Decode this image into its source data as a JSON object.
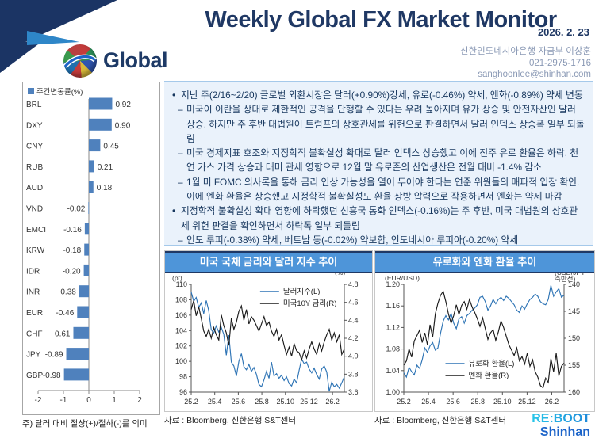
{
  "header": {
    "title": "Weekly Global FX Market Monitor",
    "date": "2026. 2. 23",
    "section_label": "Global",
    "contact_line1": "신한인도네시아은행 자금부 이상훈",
    "contact_line2": "021-2975-1716",
    "contact_line3": "sanghoonlee@shinhan.com"
  },
  "colors": {
    "navy": "#1F3864",
    "header_bar_blue": "#4E95D9",
    "bar_blue": "#4F81BD",
    "line_blue": "#2E74B5",
    "line_black": "#1a1a1a",
    "panel_bg": "#EAF2FB"
  },
  "summary": {
    "items": [
      {
        "marker": "•",
        "level": 0,
        "text": "지난 주(2/16~2/20) 글로벌 외환시장은 달러(+0.90%)강세, 유로(-0.46%) 약세, 엔화(-0.89%) 약세 변동"
      },
      {
        "marker": "–",
        "level": 1,
        "text": "미국이 이란을 상대로 제한적인 공격을 단행할 수 있다는 우려 높아지며 유가 상승 및 안전자산인 달러 상승. 하지만 주 후반 대법원이 트럼프의 상호관세를 위헌으로 판결하면서 달러 인덱스 상승폭 일부 되돌림"
      },
      {
        "marker": "–",
        "level": 1,
        "text": "미국 경제지표 호조와 지정학적 불확실성 확대로 달러 인덱스 상승했고 이에 전주 유로 환율은 하락. 천연 가스 가격 상승과 대미 관세 영향으로 12월 말 유로존의 산업생산은 전월 대비 -1.4% 감소"
      },
      {
        "marker": "–",
        "level": 1,
        "text": "1월 미 FOMC 의사록을 통해 금리 인상 가능성을 열어 두어야 한다는 연준 위원들의 매파적 입장 확인. 이에 엔화 환율은 상승했고 지정학적 불확실성도 환율 상방 압력으로 작용하면서 엔화는 약세 마감"
      },
      {
        "marker": "•",
        "level": 0,
        "text": "지정학적 불확실성 확대 영향에 하락했던 신흥국 통화 인덱스(-0.16%)는 주 후반, 미국 대법원의 상호관세 위헌 판결을 확인하면서 하락폭 일부 되돌림"
      },
      {
        "marker": "–",
        "level": 1,
        "text": "인도 루피(-0.38%) 약세, 베트남 동(-0.02%) 약보합, 인도네시아 루피아(-0.20%) 약세"
      }
    ]
  },
  "chart_data": [
    {
      "type": "bar",
      "orientation": "horizontal",
      "title": "주간변동률(%)",
      "categories": [
        "BRL",
        "DXY",
        "CNY",
        "RUB",
        "AUD",
        "VND",
        "EMCI",
        "KRW",
        "IDR",
        "INR",
        "EUR",
        "CHF",
        "JPY",
        "GBP"
      ],
      "values": [
        0.92,
        0.9,
        0.45,
        0.21,
        0.18,
        -0.02,
        -0.16,
        -0.18,
        -0.2,
        -0.38,
        -0.46,
        -0.61,
        -0.89,
        -0.98
      ],
      "xlim": [
        -2,
        2
      ],
      "x_ticks": [
        "-2",
        "-1",
        "0",
        "1",
        "2"
      ],
      "grid": false,
      "note": "주) 달러 대비 절상(+)/절하(-)를 의미"
    },
    {
      "type": "line",
      "title": "미국 국채 금리와 달러 지수 추이",
      "source": "자료 : Bloomberg, 신한은행 S&T센터",
      "x_ticks": [
        "25.2",
        "25.4",
        "25.6",
        "25.8",
        "25.10",
        "25.12",
        "26.2"
      ],
      "y_left": {
        "label": "(pt)",
        "min": 96,
        "max": 110,
        "ticks": [
          "110",
          "108",
          "106",
          "104",
          "102",
          "100",
          "98",
          "96"
        ]
      },
      "y_right": {
        "label": "(%)",
        "min": 3.6,
        "max": 4.8,
        "inverted": false,
        "ticks": [
          "4.8",
          "4.6",
          "4.4",
          "4.2",
          "4.0",
          "3.8",
          "3.6"
        ]
      },
      "legend_pos": "top-right",
      "series": [
        {
          "name": "달러지수(L)",
          "axis": "left",
          "color": "#2E74B5",
          "values": [
            109.0,
            107.8,
            108.3,
            107.0,
            107.6,
            106.2,
            107.9,
            106.6,
            104.1,
            103.7,
            104.6,
            103.8,
            104.4,
            103.5,
            100.8,
            103.4,
            99.9,
            99.4,
            98.1,
            100.0,
            101.0,
            99.3,
            98.9,
            99.6,
            98.7,
            99.2,
            98.3,
            97.0,
            96.7,
            97.6,
            98.7,
            97.8,
            99.9,
            98.1,
            98.4,
            97.8,
            98.2,
            97.5,
            98.0,
            97.1,
            96.8,
            97.7,
            97.2,
            98.8,
            100.3,
            99.7,
            99.9,
            99.0,
            98.5,
            99.1,
            98.3,
            97.7,
            99.0,
            99.4,
            98.6,
            96.1,
            97.3,
            96.7,
            97.0,
            96.5,
            97.2,
            98.0
          ]
        },
        {
          "name": "미국10Y 금리(R)",
          "axis": "right",
          "color": "#1a1a1a",
          "values": [
            4.52,
            4.62,
            4.45,
            4.55,
            4.42,
            4.28,
            4.22,
            4.3,
            4.2,
            4.32,
            4.24,
            4.18,
            4.46,
            4.34,
            4.26,
            4.12,
            4.42,
            4.3,
            4.38,
            4.5,
            4.56,
            4.4,
            4.52,
            4.36,
            4.44,
            4.4,
            4.34,
            4.28,
            4.36,
            4.44,
            4.34,
            4.38,
            4.28,
            4.22,
            4.3,
            4.18,
            4.24,
            4.12,
            4.02,
            4.1,
            4.0,
            4.14,
            4.06,
            4.04,
            3.96,
            4.06,
            3.98,
            4.08,
            4.16,
            4.08,
            4.02,
            4.14,
            4.06,
            4.16,
            4.24,
            4.3,
            4.18,
            4.26,
            4.16,
            4.24,
            4.02,
            4.08
          ]
        }
      ]
    },
    {
      "type": "line",
      "title": "유로화와 엔화 환율 추이",
      "source": "자료 : Bloomberg, 신한은행 S&T센터",
      "x_ticks": [
        "25.2",
        "25.4",
        "25.6",
        "25.8",
        "25.10",
        "25.12",
        "26.2"
      ],
      "y_left": {
        "label": "(EUR/USD)",
        "min": 1.0,
        "max": 1.2,
        "ticks": [
          "1.20",
          "1.16",
          "1.12",
          "1.08",
          "1.04",
          "1.00"
        ]
      },
      "y_right": {
        "label": "(USD/JPY\n축반전)",
        "min": 140,
        "max": 160,
        "inverted": true,
        "ticks": [
          "140",
          "145",
          "150",
          "155",
          "160"
        ]
      },
      "legend_pos": "center-bottom",
      "series": [
        {
          "name": "유로화 환율(L)",
          "axis": "left",
          "color": "#2E74B5",
          "values": [
            1.036,
            1.028,
            1.046,
            1.038,
            1.032,
            1.05,
            1.044,
            1.06,
            1.082,
            1.074,
            1.086,
            1.092,
            1.078,
            1.082,
            1.11,
            1.132,
            1.142,
            1.134,
            1.146,
            1.128,
            1.118,
            1.136,
            1.14,
            1.128,
            1.142,
            1.146,
            1.152,
            1.156,
            1.162,
            1.176,
            1.178,
            1.168,
            1.152,
            1.16,
            1.172,
            1.164,
            1.172,
            1.176,
            1.17,
            1.178,
            1.174,
            1.168,
            1.162,
            1.152,
            1.148,
            1.16,
            1.154,
            1.164,
            1.172,
            1.176,
            1.182,
            1.178,
            1.168,
            1.164,
            1.162,
            1.172,
            1.198,
            1.178,
            1.186,
            1.192,
            1.176,
            1.18
          ]
        },
        {
          "name": "엔화 환율(R)",
          "axis": "right",
          "color": "#1a1a1a",
          "values": [
            155.0,
            154.2,
            152.0,
            153.5,
            150.5,
            149.5,
            148.5,
            150.8,
            149.0,
            151.2,
            147.5,
            149.8,
            145.5,
            143.5,
            142.0,
            141.3,
            143.2,
            145.5,
            147.2,
            145.8,
            143.8,
            145.6,
            143.9,
            143.2,
            144.6,
            142.8,
            144.2,
            145.2,
            146.4,
            147.8,
            146.2,
            148.2,
            150.2,
            149.0,
            148.4,
            150.4,
            148.8,
            146.8,
            148.0,
            149.6,
            151.2,
            152.2,
            153.2,
            151.8,
            154.2,
            153.4,
            154.8,
            152.8,
            155.2,
            154.0,
            156.2,
            157.2,
            158.8,
            159.2,
            157.4,
            158.2,
            153.8,
            156.2,
            152.8,
            157.0,
            155.2,
            154.6
          ]
        }
      ]
    }
  ],
  "footer_logo": {
    "line1": "RE:BOOT",
    "line2": "Shinhan"
  }
}
